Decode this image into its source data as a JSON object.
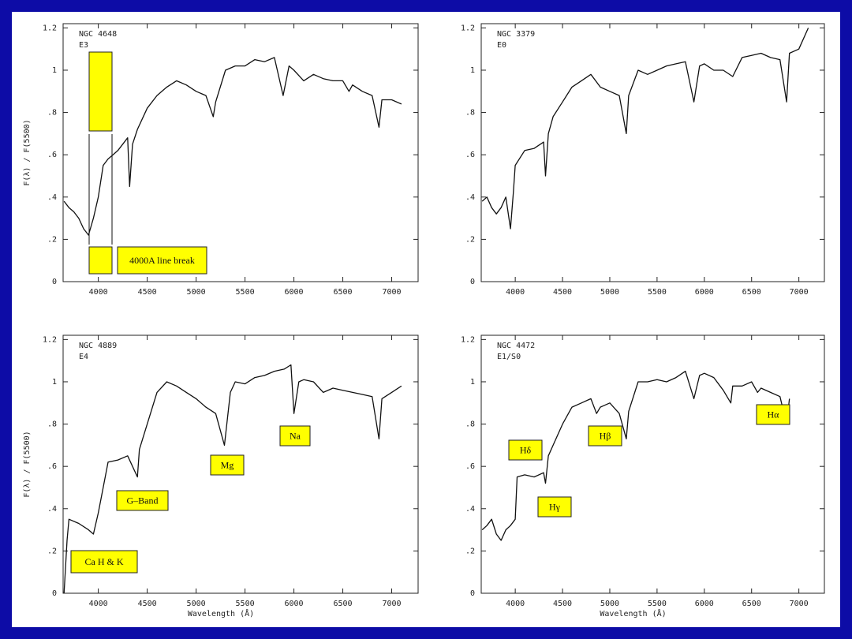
{
  "chart_data": [
    {
      "type": "line",
      "title": "NGC 4648",
      "subtitle": "E3",
      "y_label": "F(λ) / F(5500)",
      "color": "#111111",
      "x": [
        3650,
        3700,
        3750,
        3800,
        3850,
        3900,
        3950,
        4000,
        4050,
        4100,
        4150,
        4200,
        4300,
        4320,
        4350,
        4400,
        4500,
        4600,
        4700,
        4800,
        4900,
        5000,
        5100,
        5175,
        5200,
        5300,
        5400,
        5500,
        5600,
        5700,
        5800,
        5890,
        5950,
        6000,
        6100,
        6200,
        6300,
        6400,
        6500,
        6563,
        6600,
        6700,
        6800,
        6870,
        6900,
        7000,
        7100
      ],
      "values": [
        0.38,
        0.35,
        0.33,
        0.3,
        0.25,
        0.22,
        0.3,
        0.4,
        0.55,
        0.58,
        0.6,
        0.62,
        0.68,
        0.45,
        0.65,
        0.72,
        0.82,
        0.88,
        0.92,
        0.95,
        0.93,
        0.9,
        0.88,
        0.78,
        0.85,
        1.0,
        1.02,
        1.02,
        1.05,
        1.04,
        1.06,
        0.88,
        1.02,
        1.0,
        0.95,
        0.98,
        0.96,
        0.95,
        0.95,
        0.9,
        0.93,
        0.9,
        0.88,
        0.73,
        0.86,
        0.86,
        0.84
      ],
      "xlim": [
        3640,
        7270
      ],
      "xticks": [
        4000,
        4500,
        5000,
        5500,
        6000,
        6500,
        7000
      ],
      "ylim": [
        0,
        1.22
      ],
      "yticks": [
        0,
        {
          "value": 0.2,
          "label": ".2"
        },
        {
          "value": 0.4,
          "label": ".4"
        },
        {
          "value": 0.6,
          "label": ".6"
        },
        {
          "value": 0.8,
          "label": ".8"
        },
        1,
        1.2
      ],
      "annotations": [
        "4000A line break"
      ]
    },
    {
      "type": "line",
      "title": "NGC 3379",
      "subtitle": "E0",
      "color": "#111111",
      "x": [
        3650,
        3700,
        3750,
        3800,
        3850,
        3900,
        3950,
        3980,
        4000,
        4100,
        4200,
        4300,
        4320,
        4350,
        4400,
        4500,
        4600,
        4700,
        4800,
        4900,
        5000,
        5100,
        5175,
        5200,
        5300,
        5400,
        5500,
        5600,
        5700,
        5800,
        5890,
        5950,
        6000,
        6100,
        6200,
        6300,
        6400,
        6500,
        6600,
        6700,
        6800,
        6870,
        6900,
        7000,
        7100
      ],
      "values": [
        0.38,
        0.4,
        0.35,
        0.32,
        0.35,
        0.4,
        0.25,
        0.42,
        0.55,
        0.62,
        0.63,
        0.66,
        0.5,
        0.7,
        0.78,
        0.85,
        0.92,
        0.95,
        0.98,
        0.92,
        0.9,
        0.88,
        0.7,
        0.88,
        1.0,
        0.98,
        1.0,
        1.02,
        1.03,
        1.04,
        0.85,
        1.02,
        1.03,
        1.0,
        1.0,
        0.97,
        1.06,
        1.07,
        1.08,
        1.06,
        1.05,
        0.85,
        1.08,
        1.1,
        1.2
      ],
      "xlim": [
        3640,
        7270
      ],
      "xticks": [
        4000,
        4500,
        5000,
        5500,
        6000,
        6500,
        7000
      ],
      "ylim": [
        0,
        1.22
      ],
      "yticks": [
        0,
        {
          "value": 0.2,
          "label": ".2"
        },
        {
          "value": 0.4,
          "label": ".4"
        },
        {
          "value": 0.6,
          "label": ".6"
        },
        {
          "value": 0.8,
          "label": ".8"
        },
        1,
        1.2
      ],
      "annotations": []
    },
    {
      "type": "line",
      "title": "NGC 4889",
      "subtitle": "E4",
      "x_label": "Wavelength   (Å)",
      "y_label": "F(λ) / F(5500)",
      "color": "#111111",
      "x": [
        3650,
        3680,
        3700,
        3800,
        3900,
        3950,
        4000,
        4050,
        4100,
        4200,
        4300,
        4400,
        4420,
        4500,
        4600,
        4700,
        4800,
        4900,
        5000,
        5100,
        5200,
        5290,
        5350,
        5400,
        5500,
        5600,
        5700,
        5800,
        5900,
        5970,
        6000,
        6050,
        6100,
        6200,
        6300,
        6400,
        6500,
        6600,
        6700,
        6800,
        6870,
        6900,
        7000,
        7100
      ],
      "values": [
        0.0,
        0.25,
        0.35,
        0.33,
        0.3,
        0.28,
        0.38,
        0.5,
        0.62,
        0.63,
        0.65,
        0.55,
        0.68,
        0.8,
        0.95,
        1.0,
        0.98,
        0.95,
        0.92,
        0.88,
        0.85,
        0.7,
        0.95,
        1.0,
        0.99,
        1.02,
        1.03,
        1.05,
        1.06,
        1.08,
        0.85,
        1.0,
        1.01,
        1.0,
        0.95,
        0.97,
        0.96,
        0.95,
        0.94,
        0.93,
        0.73,
        0.92,
        0.95,
        0.98
      ],
      "xlim": [
        3640,
        7270
      ],
      "xticks": [
        4000,
        4500,
        5000,
        5500,
        6000,
        6500,
        7000
      ],
      "ylim": [
        0,
        1.22
      ],
      "yticks": [
        0,
        {
          "value": 0.2,
          "label": ".2"
        },
        {
          "value": 0.4,
          "label": ".4"
        },
        {
          "value": 0.6,
          "label": ".6"
        },
        {
          "value": 0.8,
          "label": ".8"
        },
        1,
        1.2
      ],
      "annotations": [
        "Ca H & K",
        "G–Band",
        "Mg",
        "Na"
      ]
    },
    {
      "type": "line",
      "title": "NGC 4472",
      "subtitle": "E1/S0",
      "x_label": "Wavelength   (Å)",
      "color": "#111111",
      "x": [
        3650,
        3700,
        3750,
        3800,
        3850,
        3900,
        3950,
        4000,
        4020,
        4100,
        4200,
        4300,
        4320,
        4350,
        4400,
        4500,
        4600,
        4700,
        4800,
        4860,
        4900,
        5000,
        5100,
        5175,
        5200,
        5300,
        5400,
        5500,
        5600,
        5700,
        5800,
        5890,
        5950,
        6000,
        6100,
        6200,
        6280,
        6300,
        6400,
        6500,
        6563,
        6600,
        6700,
        6800,
        6870,
        6900
      ],
      "values": [
        0.3,
        0.32,
        0.35,
        0.28,
        0.25,
        0.3,
        0.32,
        0.35,
        0.55,
        0.56,
        0.55,
        0.57,
        0.52,
        0.65,
        0.7,
        0.8,
        0.88,
        0.9,
        0.92,
        0.85,
        0.88,
        0.9,
        0.85,
        0.73,
        0.86,
        1.0,
        1.0,
        1.01,
        1.0,
        1.02,
        1.05,
        0.92,
        1.03,
        1.04,
        1.02,
        0.96,
        0.9,
        0.98,
        0.98,
        1.0,
        0.95,
        0.97,
        0.95,
        0.93,
        0.8,
        0.92
      ],
      "xlim": [
        3640,
        7270
      ],
      "xticks": [
        4000,
        4500,
        5000,
        5500,
        6000,
        6500,
        7000
      ],
      "ylim": [
        0,
        1.22
      ],
      "yticks": [
        0,
        {
          "value": 0.2,
          "label": ".2"
        },
        {
          "value": 0.4,
          "label": ".4"
        },
        {
          "value": 0.6,
          "label": ".6"
        },
        {
          "value": 0.8,
          "label": ".8"
        },
        1,
        1.2
      ],
      "annotations": [
        "Hδ",
        "Hγ",
        "Hβ",
        "Hα"
      ]
    }
  ]
}
